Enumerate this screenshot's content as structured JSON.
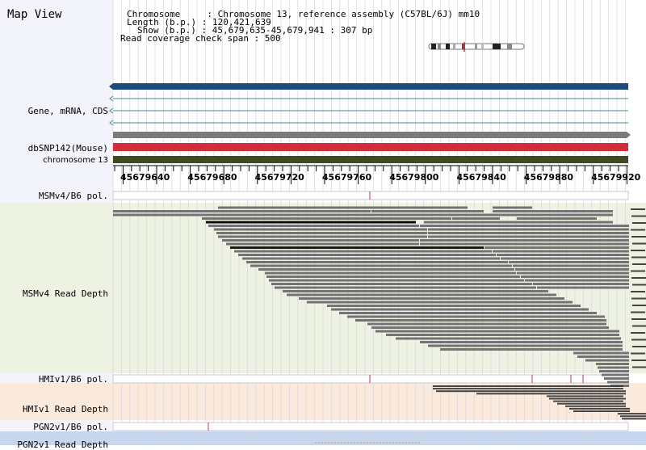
{
  "title": "Map View",
  "info": {
    "chromosome_line": "Chromosome     : Chromosome 13, reference assembly (C57BL/6J) mm10",
    "length_line": "Length (b.p.) : 120,421,639",
    "show_line": "Show (b.p.) : 45,679,635-45,679,941 : 307 bp",
    "span_line": "Read coverage check span : 500"
  },
  "tracks": {
    "gene_label": "Gene, mRNA, CDS",
    "dbsnp_label": "dbSNP142(Mouse)",
    "chrom_label": "chromosome 13",
    "msm_pol_label": "MSMv4/B6 pol.",
    "msm_depth_label": "MSMv4 Read Depth",
    "hmi_pol_label": "HMIv1/B6 pol.",
    "hmi_depth_label": "HMIv1 Read Depth",
    "pgn_pol_label": "PGN2v1/B6 pol.",
    "pgn_depth_label": "PGN2v1 Read Depth"
  },
  "ruler": {
    "ticks": [
      "45679640",
      "45679680",
      "45679720",
      "45679760",
      "45679800",
      "45679840",
      "45679880",
      "45679920"
    ]
  },
  "colors": {
    "gene_bar": "#1e4b7d",
    "snp_bar": "#d22d3a",
    "chrom_bar": "#3e4a20",
    "msm_bg": "#edf2e3",
    "hmi_bg": "#fbe9dc",
    "pgn_bg": "#c6d6ee"
  }
}
